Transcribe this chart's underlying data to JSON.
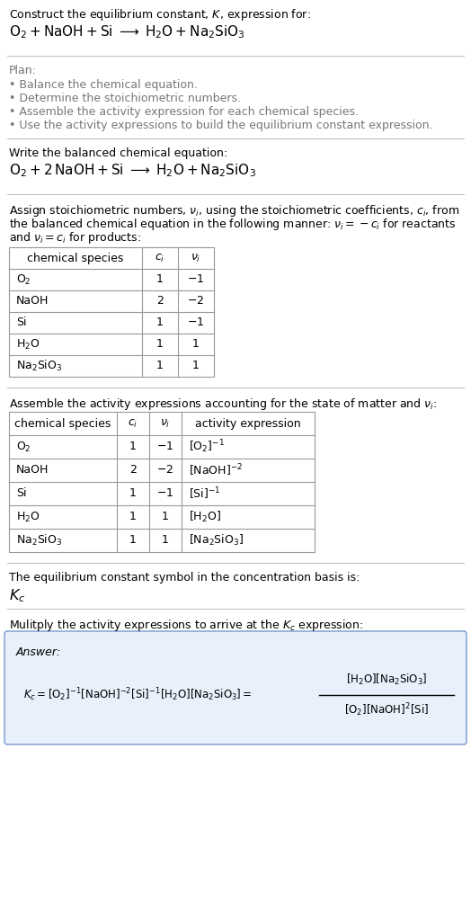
{
  "title_line1": "Construct the equilibrium constant, $K$, expression for:",
  "title_line2": "$\\mathrm{O_2 + NaOH + Si} \\;\\longrightarrow\\; \\mathrm{H_2O + Na_2SiO_3}$",
  "plan_header": "Plan:",
  "plan_items": [
    "• Balance the chemical equation.",
    "• Determine the stoichiometric numbers.",
    "• Assemble the activity expression for each chemical species.",
    "• Use the activity expressions to build the equilibrium constant expression."
  ],
  "balanced_header": "Write the balanced chemical equation:",
  "balanced_eq": "$\\mathrm{O_2 + 2\\,NaOH + Si} \\;\\longrightarrow\\; \\mathrm{H_2O + Na_2SiO_3}$",
  "stoich_line1": "Assign stoichiometric numbers, $\\nu_i$, using the stoichiometric coefficients, $c_i$, from",
  "stoich_line2": "the balanced chemical equation in the following manner: $\\nu_i = -c_i$ for reactants",
  "stoich_line3": "and $\\nu_i = c_i$ for products:",
  "table1_col0": "chemical species",
  "table1_col1": "$c_i$",
  "table1_col2": "$\\nu_i$",
  "table1_rows": [
    [
      "$\\mathrm{O_2}$",
      "1",
      "$-1$"
    ],
    [
      "NaOH",
      "2",
      "$-2$"
    ],
    [
      "Si",
      "1",
      "$-1$"
    ],
    [
      "$\\mathrm{H_2O}$",
      "1",
      "1"
    ],
    [
      "$\\mathrm{Na_2SiO_3}$",
      "1",
      "1"
    ]
  ],
  "activity_header": "Assemble the activity expressions accounting for the state of matter and $\\nu_i$:",
  "table2_col0": "chemical species",
  "table2_col1": "$c_i$",
  "table2_col2": "$\\nu_i$",
  "table2_col3": "activity expression",
  "table2_rows": [
    [
      "$\\mathrm{O_2}$",
      "1",
      "$-1$",
      "$[\\mathrm{O_2}]^{-1}$"
    ],
    [
      "NaOH",
      "2",
      "$-2$",
      "$[\\mathrm{NaOH}]^{-2}$"
    ],
    [
      "Si",
      "1",
      "$-1$",
      "$[\\mathrm{Si}]^{-1}$"
    ],
    [
      "$\\mathrm{H_2O}$",
      "1",
      "1",
      "$[\\mathrm{H_2O}]$"
    ],
    [
      "$\\mathrm{Na_2SiO_3}$",
      "1",
      "1",
      "$[\\mathrm{Na_2SiO_3}]$"
    ]
  ],
  "kc_header": "The equilibrium constant symbol in the concentration basis is:",
  "kc_symbol": "$K_c$",
  "multiply_header": "Mulitply the activity expressions to arrive at the $K_c$ expression:",
  "answer_label": "Answer:",
  "bg_color": "#ffffff",
  "text_color": "#000000",
  "gray_color": "#777777",
  "line_color": "#bbbbbb",
  "table_border_color": "#999999",
  "answer_box_fill": "#e8f0fb",
  "answer_box_border": "#7799cc"
}
